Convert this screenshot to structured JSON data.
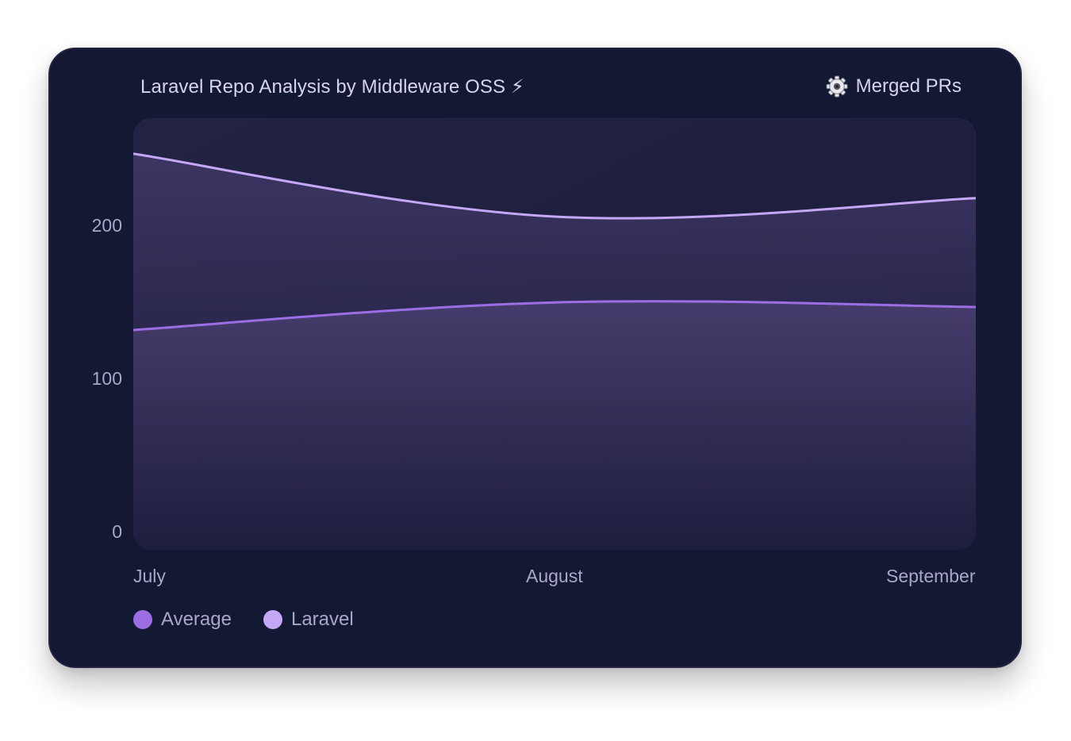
{
  "header": {
    "title": "Laravel Repo Analysis by Middleware OSS ⚡",
    "metric_label": "Merged PRs",
    "metric_icon": "gear-icon"
  },
  "chart_data": {
    "type": "area",
    "categories": [
      "July",
      "August",
      "September"
    ],
    "yticks": [
      "0",
      "100",
      "200"
    ],
    "ylim": [
      0,
      265
    ],
    "grid": false,
    "legend_placement": "bottom-left",
    "series": [
      {
        "name": "Average",
        "values": [
          132,
          150,
          147
        ],
        "color": "#9b6fe3"
      },
      {
        "name": "Laravel",
        "values": [
          247,
          206,
          218
        ],
        "color": "#c4a7f5"
      }
    ]
  }
}
